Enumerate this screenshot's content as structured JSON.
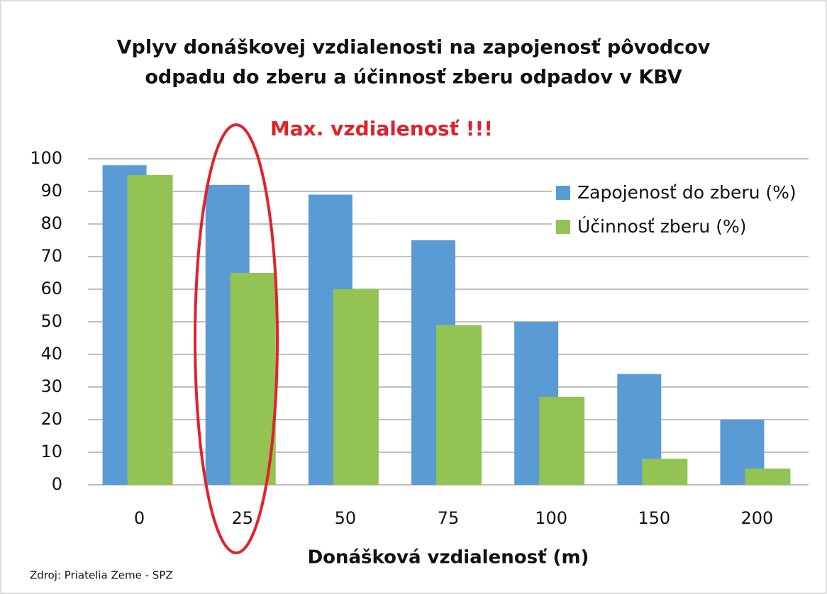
{
  "chart_data": {
    "type": "bar",
    "title": [
      "Vplyv donáškovej vzdialenosti na zapojenosť pôvodcov",
      "odpadu do zberu a účinnosť zberu odpadov v KBV"
    ],
    "annotation": "Max. vzdialenosť !!!",
    "x_label": "Donášková vzdialenosť (m)",
    "source": "Zdroj: Priatelia Zeme - SPZ",
    "categories": [
      "0",
      "25",
      "50",
      "75",
      "100",
      "150",
      "200"
    ],
    "series": [
      {
        "name": "Zapojenosť do zberu (%)",
        "color": "#5b9bd5",
        "values": [
          98,
          92,
          89,
          75,
          50,
          34,
          20
        ]
      },
      {
        "name": "Účinnosť zberu (%)",
        "color": "#92c353",
        "values": [
          95,
          65,
          60,
          49,
          27,
          8,
          5
        ]
      }
    ],
    "ylim": [
      0,
      100
    ],
    "yticks": [
      0,
      10,
      20,
      30,
      40,
      50,
      60,
      70,
      80,
      90,
      100
    ],
    "grid": true
  }
}
